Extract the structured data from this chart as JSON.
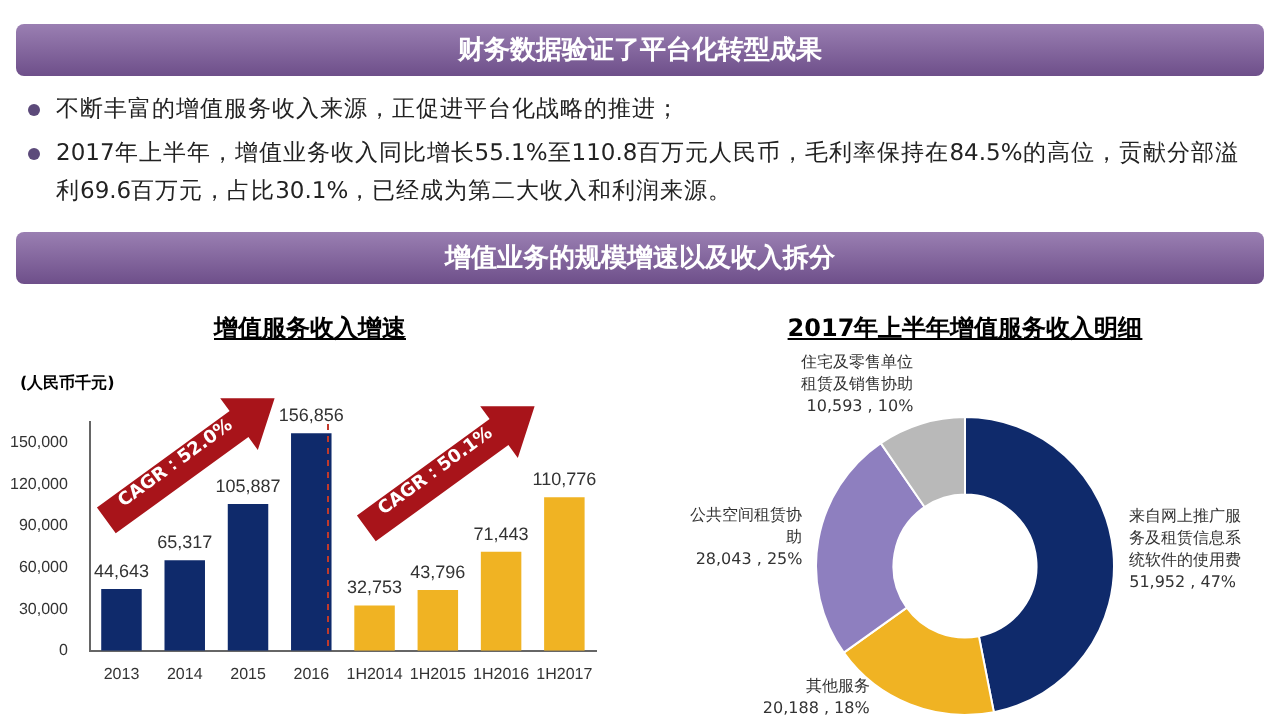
{
  "chart_data": [
    {
      "type": "other",
      "title": "财务数据验证了平台化转型成果",
      "subtitle": "增值业务的规模增速以及收入拆分",
      "annotations": [
        "不断丰富的增值服务收入来源，正促进平台化战略的推进；",
        "2017年上半年，增值业务收入同比增长55.1%至110.8百万元人民币，毛利率保持在84.5%的高位，贡献分部溢利69.6百万元，占比30.1%，已经成为第二大收入和利润来源。"
      ]
    },
    {
      "type": "bar",
      "title": "增值服务收入增速",
      "ylabel": "(人民币千元)",
      "categories": [
        "2013",
        "2014",
        "2015",
        "2016",
        "1H2014",
        "1H2015",
        "1H2016",
        "1H2017"
      ],
      "values": [
        44643,
        65317,
        105887,
        156856,
        32753,
        43796,
        71443,
        110776
      ],
      "value_labels": [
        "44,643",
        "65,317",
        "105,887",
        "156,856",
        "32,753",
        "43,796",
        "71,443",
        "110,776"
      ],
      "colors": [
        "#0f2a6b",
        "#0f2a6b",
        "#0f2a6b",
        "#0f2a6b",
        "#f0b323",
        "#f0b323",
        "#f0b323",
        "#f0b323"
      ],
      "ylim": [
        0,
        165000
      ],
      "yticks": [
        0,
        {
          "value": 30000,
          "label": "30,000"
        },
        {
          "value": 60000,
          "label": "60,000"
        },
        {
          "value": 90000,
          "label": "90,000"
        },
        {
          "value": 120000,
          "label": "120,000"
        },
        {
          "value": 150000,
          "label": "150,000"
        }
      ],
      "grid": false,
      "legend": false,
      "annotations": [
        "CAGR：52.0%",
        "CAGR：50.1%"
      ]
    },
    {
      "type": "donut",
      "title": "2017年上半年增值服务收入明细",
      "categories": [
        "来自网上推广服务及租赁信息系统软件的使用费",
        "其他服务",
        "公共空间租赁协助",
        "住宅及零售单位租赁及销售协助"
      ],
      "values": [
        51952,
        20188,
        28043,
        10593
      ],
      "value_labels": [
        "51,952 , 47%",
        "20,188 , 18%",
        "28,043 , 25%",
        "10,593 , 10%"
      ],
      "colors": [
        "#0f2a6b",
        "#f0b323",
        "#8e7fbf",
        "#b9b9b9"
      ],
      "legend": false
    }
  ]
}
